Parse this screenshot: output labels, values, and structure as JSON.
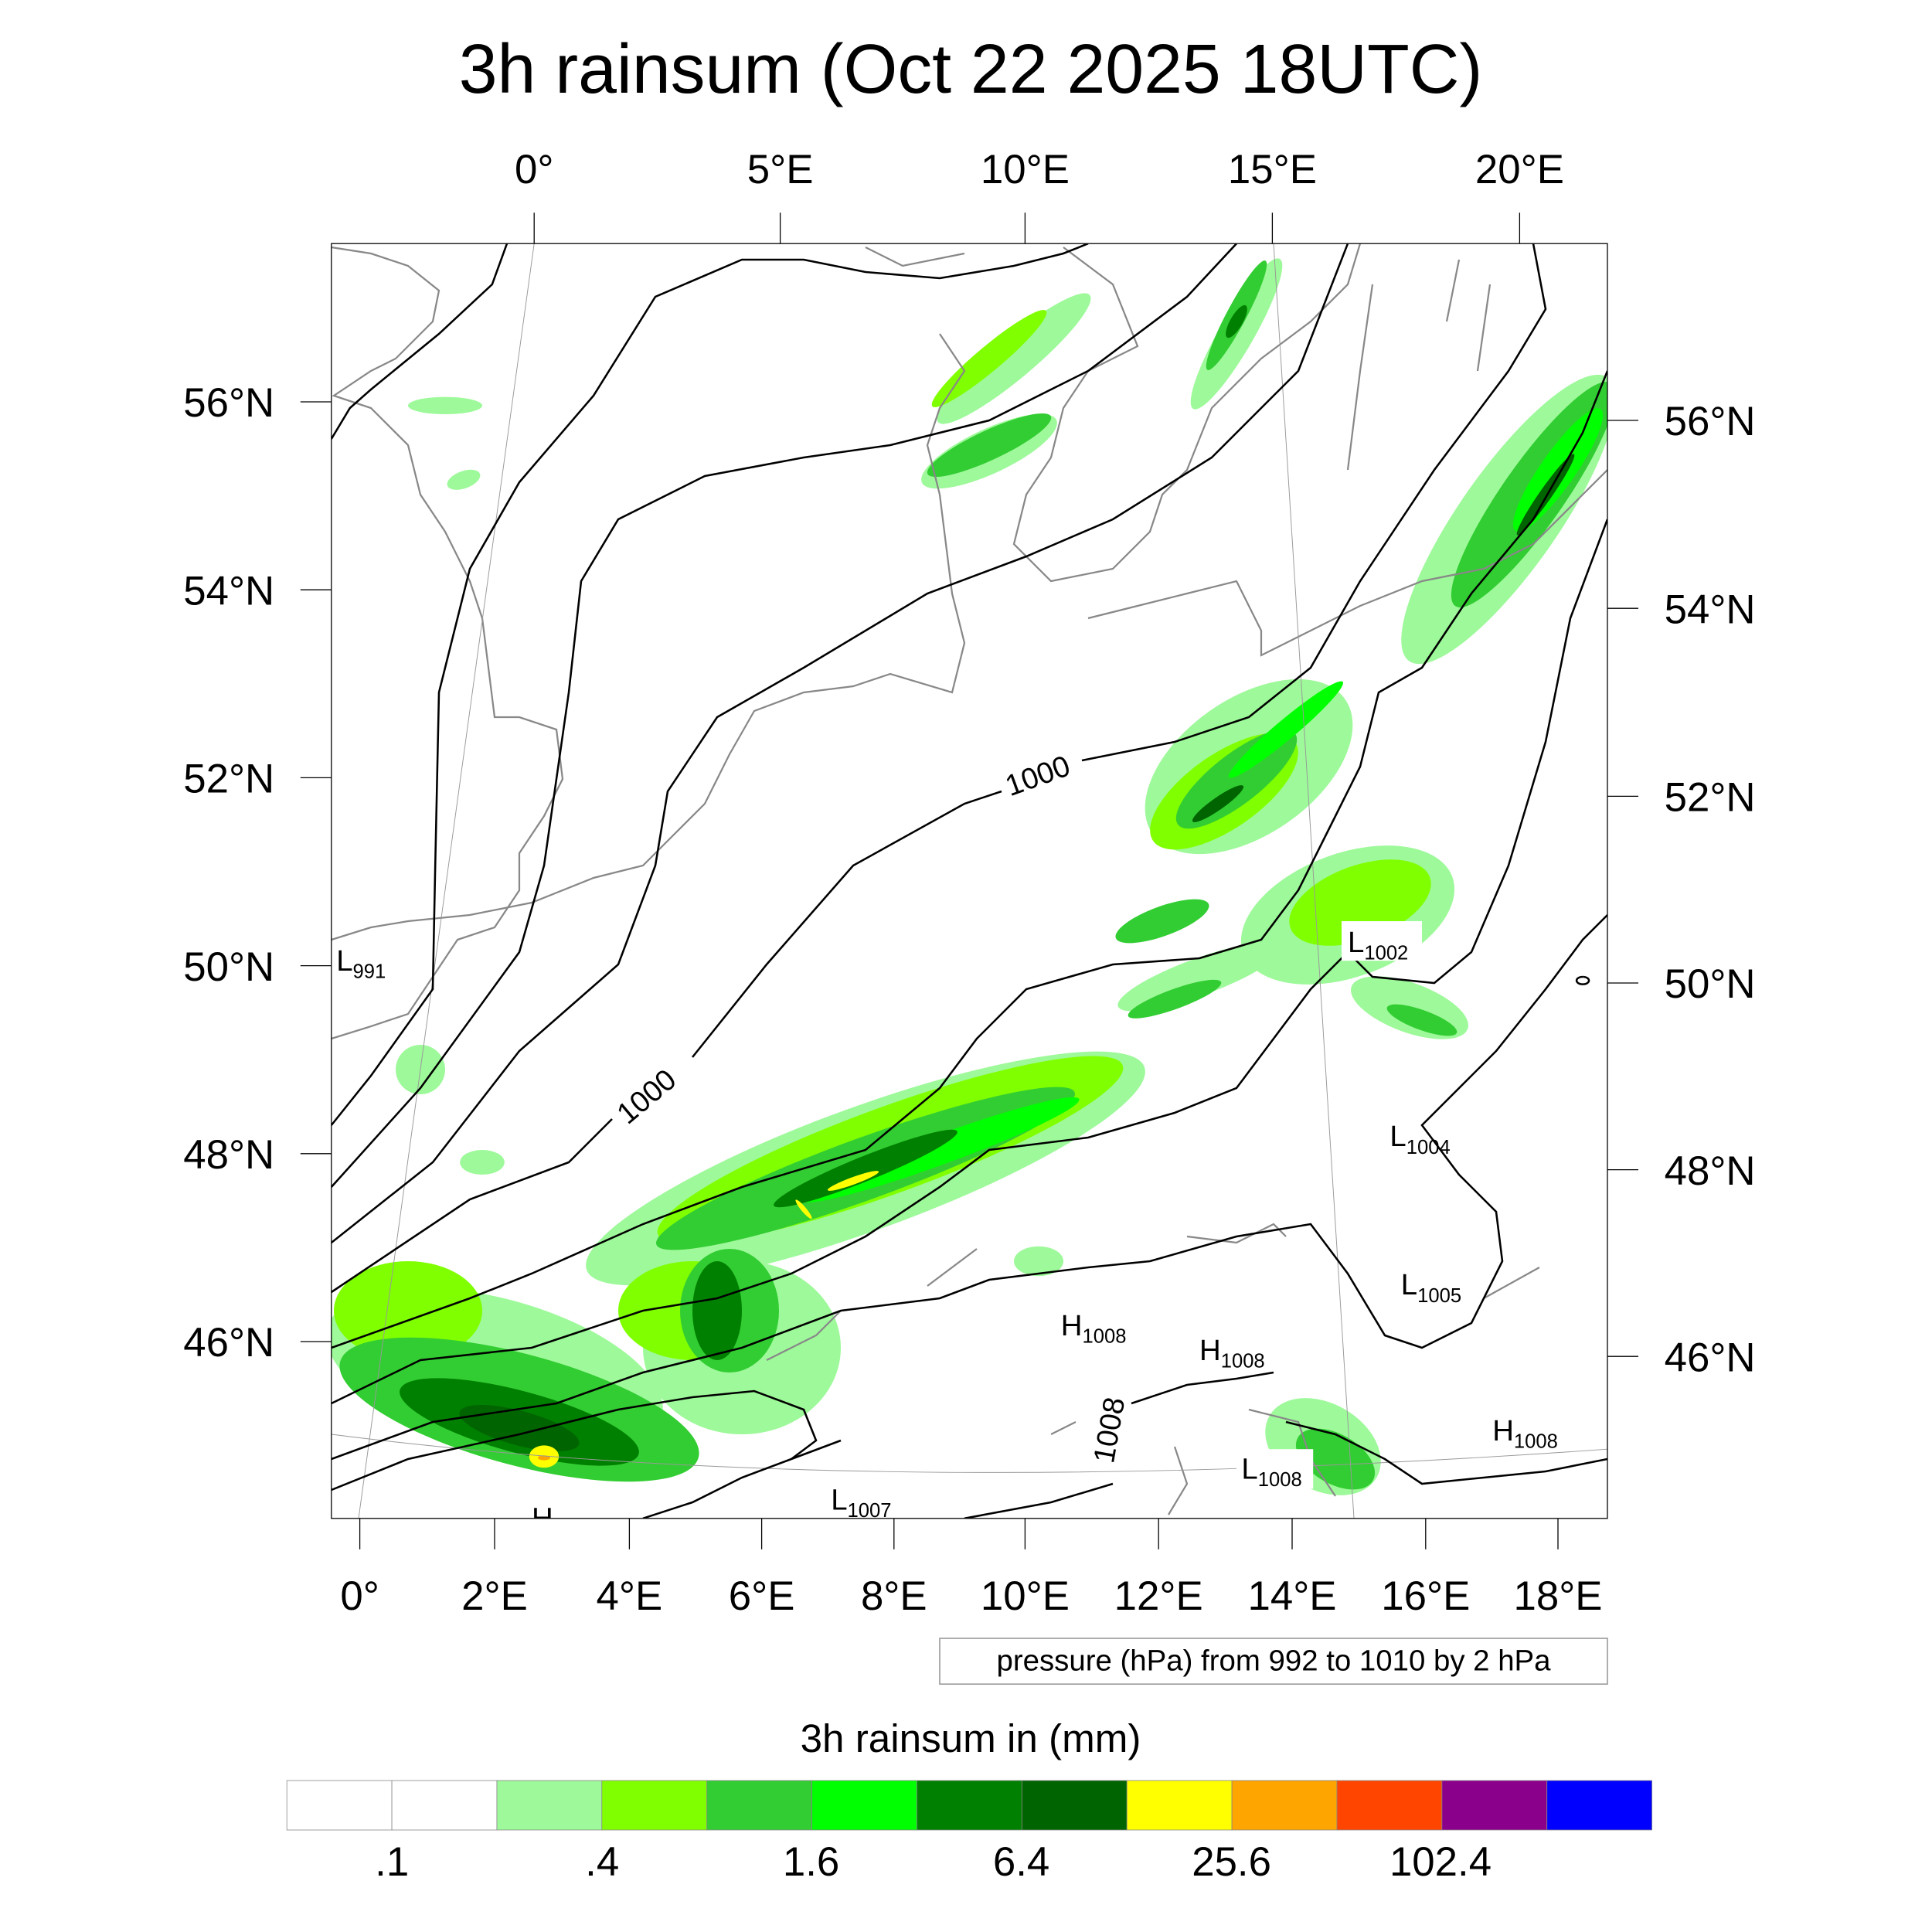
{
  "title": "3h rainsum (Oct 22 2025 18UTC)",
  "axes": {
    "top_lon": [
      "0°",
      "5°E",
      "10°E",
      "15°E",
      "20°E"
    ],
    "bottom_lon": [
      "0°",
      "2°E",
      "4°E",
      "6°E",
      "8°E",
      "10°E",
      "12°E",
      "14°E",
      "16°E",
      "18°E"
    ],
    "left_lat": [
      "56°N",
      "54°N",
      "52°N",
      "50°N",
      "48°N",
      "46°N"
    ],
    "right_lat": [
      "56°N",
      "54°N",
      "52°N",
      "50°N",
      "48°N",
      "46°N"
    ]
  },
  "pressure_centers": [
    {
      "type": "L",
      "value": "991"
    },
    {
      "type": "L",
      "value": "1002"
    },
    {
      "type": "L",
      "value": "1004"
    },
    {
      "type": "L",
      "value": "1005"
    },
    {
      "type": "H",
      "value": "1008"
    },
    {
      "type": "H",
      "value": "1008"
    },
    {
      "type": "H",
      "value": "1008"
    },
    {
      "type": "L",
      "value": "1008"
    },
    {
      "type": "L",
      "value": "1007"
    },
    {
      "type": "H",
      "value": ""
    }
  ],
  "contour_labels": [
    "1000",
    "1000",
    "1008"
  ],
  "contour_info": "pressure (hPa) from 992 to 1010 by 2 hPa",
  "colorbar": {
    "title": "3h rainsum in (mm)",
    "colors": [
      "#ffffff",
      "#ffffff",
      "#9ef99a",
      "#80ff00",
      "#32cd32",
      "#00ff00",
      "#008000",
      "#006400",
      "#ffff00",
      "#ffa500",
      "#ff4500",
      "#8b008b",
      "#0000ff"
    ],
    "labels": [
      ".1",
      ".4",
      "1.6",
      "6.4",
      "25.6",
      "102.4"
    ]
  }
}
